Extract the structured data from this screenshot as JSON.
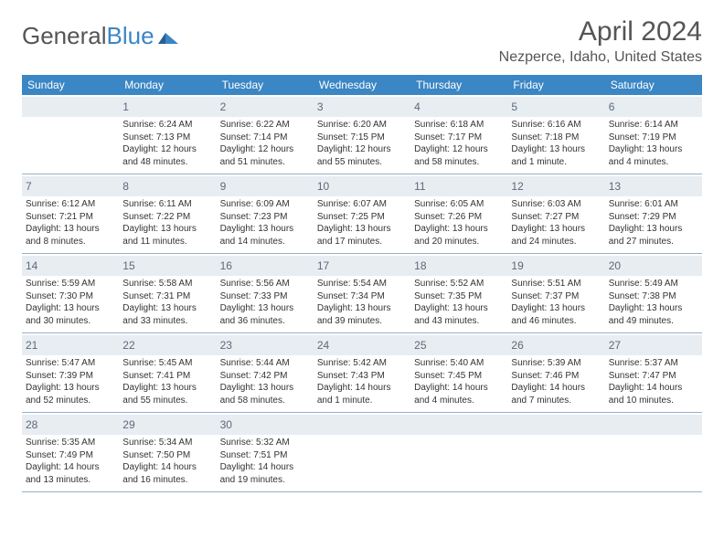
{
  "logo": {
    "text_general": "General",
    "text_blue": "Blue"
  },
  "title": "April 2024",
  "location": "Nezperce, Idaho, United States",
  "weekdays": [
    "Sunday",
    "Monday",
    "Tuesday",
    "Wednesday",
    "Thursday",
    "Friday",
    "Saturday"
  ],
  "colors": {
    "header_bg": "#3b86c4",
    "daynum_bg": "#e8edf2",
    "border": "#96b1c9",
    "text": "#333333",
    "title_text": "#555555"
  },
  "weeks": [
    [
      {
        "day": "",
        "sunrise": "",
        "sunset": "",
        "daylight": ""
      },
      {
        "day": "1",
        "sunrise": "Sunrise: 6:24 AM",
        "sunset": "Sunset: 7:13 PM",
        "daylight": "Daylight: 12 hours and 48 minutes."
      },
      {
        "day": "2",
        "sunrise": "Sunrise: 6:22 AM",
        "sunset": "Sunset: 7:14 PM",
        "daylight": "Daylight: 12 hours and 51 minutes."
      },
      {
        "day": "3",
        "sunrise": "Sunrise: 6:20 AM",
        "sunset": "Sunset: 7:15 PM",
        "daylight": "Daylight: 12 hours and 55 minutes."
      },
      {
        "day": "4",
        "sunrise": "Sunrise: 6:18 AM",
        "sunset": "Sunset: 7:17 PM",
        "daylight": "Daylight: 12 hours and 58 minutes."
      },
      {
        "day": "5",
        "sunrise": "Sunrise: 6:16 AM",
        "sunset": "Sunset: 7:18 PM",
        "daylight": "Daylight: 13 hours and 1 minute."
      },
      {
        "day": "6",
        "sunrise": "Sunrise: 6:14 AM",
        "sunset": "Sunset: 7:19 PM",
        "daylight": "Daylight: 13 hours and 4 minutes."
      }
    ],
    [
      {
        "day": "7",
        "sunrise": "Sunrise: 6:12 AM",
        "sunset": "Sunset: 7:21 PM",
        "daylight": "Daylight: 13 hours and 8 minutes."
      },
      {
        "day": "8",
        "sunrise": "Sunrise: 6:11 AM",
        "sunset": "Sunset: 7:22 PM",
        "daylight": "Daylight: 13 hours and 11 minutes."
      },
      {
        "day": "9",
        "sunrise": "Sunrise: 6:09 AM",
        "sunset": "Sunset: 7:23 PM",
        "daylight": "Daylight: 13 hours and 14 minutes."
      },
      {
        "day": "10",
        "sunrise": "Sunrise: 6:07 AM",
        "sunset": "Sunset: 7:25 PM",
        "daylight": "Daylight: 13 hours and 17 minutes."
      },
      {
        "day": "11",
        "sunrise": "Sunrise: 6:05 AM",
        "sunset": "Sunset: 7:26 PM",
        "daylight": "Daylight: 13 hours and 20 minutes."
      },
      {
        "day": "12",
        "sunrise": "Sunrise: 6:03 AM",
        "sunset": "Sunset: 7:27 PM",
        "daylight": "Daylight: 13 hours and 24 minutes."
      },
      {
        "day": "13",
        "sunrise": "Sunrise: 6:01 AM",
        "sunset": "Sunset: 7:29 PM",
        "daylight": "Daylight: 13 hours and 27 minutes."
      }
    ],
    [
      {
        "day": "14",
        "sunrise": "Sunrise: 5:59 AM",
        "sunset": "Sunset: 7:30 PM",
        "daylight": "Daylight: 13 hours and 30 minutes."
      },
      {
        "day": "15",
        "sunrise": "Sunrise: 5:58 AM",
        "sunset": "Sunset: 7:31 PM",
        "daylight": "Daylight: 13 hours and 33 minutes."
      },
      {
        "day": "16",
        "sunrise": "Sunrise: 5:56 AM",
        "sunset": "Sunset: 7:33 PM",
        "daylight": "Daylight: 13 hours and 36 minutes."
      },
      {
        "day": "17",
        "sunrise": "Sunrise: 5:54 AM",
        "sunset": "Sunset: 7:34 PM",
        "daylight": "Daylight: 13 hours and 39 minutes."
      },
      {
        "day": "18",
        "sunrise": "Sunrise: 5:52 AM",
        "sunset": "Sunset: 7:35 PM",
        "daylight": "Daylight: 13 hours and 43 minutes."
      },
      {
        "day": "19",
        "sunrise": "Sunrise: 5:51 AM",
        "sunset": "Sunset: 7:37 PM",
        "daylight": "Daylight: 13 hours and 46 minutes."
      },
      {
        "day": "20",
        "sunrise": "Sunrise: 5:49 AM",
        "sunset": "Sunset: 7:38 PM",
        "daylight": "Daylight: 13 hours and 49 minutes."
      }
    ],
    [
      {
        "day": "21",
        "sunrise": "Sunrise: 5:47 AM",
        "sunset": "Sunset: 7:39 PM",
        "daylight": "Daylight: 13 hours and 52 minutes."
      },
      {
        "day": "22",
        "sunrise": "Sunrise: 5:45 AM",
        "sunset": "Sunset: 7:41 PM",
        "daylight": "Daylight: 13 hours and 55 minutes."
      },
      {
        "day": "23",
        "sunrise": "Sunrise: 5:44 AM",
        "sunset": "Sunset: 7:42 PM",
        "daylight": "Daylight: 13 hours and 58 minutes."
      },
      {
        "day": "24",
        "sunrise": "Sunrise: 5:42 AM",
        "sunset": "Sunset: 7:43 PM",
        "daylight": "Daylight: 14 hours and 1 minute."
      },
      {
        "day": "25",
        "sunrise": "Sunrise: 5:40 AM",
        "sunset": "Sunset: 7:45 PM",
        "daylight": "Daylight: 14 hours and 4 minutes."
      },
      {
        "day": "26",
        "sunrise": "Sunrise: 5:39 AM",
        "sunset": "Sunset: 7:46 PM",
        "daylight": "Daylight: 14 hours and 7 minutes."
      },
      {
        "day": "27",
        "sunrise": "Sunrise: 5:37 AM",
        "sunset": "Sunset: 7:47 PM",
        "daylight": "Daylight: 14 hours and 10 minutes."
      }
    ],
    [
      {
        "day": "28",
        "sunrise": "Sunrise: 5:35 AM",
        "sunset": "Sunset: 7:49 PM",
        "daylight": "Daylight: 14 hours and 13 minutes."
      },
      {
        "day": "29",
        "sunrise": "Sunrise: 5:34 AM",
        "sunset": "Sunset: 7:50 PM",
        "daylight": "Daylight: 14 hours and 16 minutes."
      },
      {
        "day": "30",
        "sunrise": "Sunrise: 5:32 AM",
        "sunset": "Sunset: 7:51 PM",
        "daylight": "Daylight: 14 hours and 19 minutes."
      },
      {
        "day": "",
        "sunrise": "",
        "sunset": "",
        "daylight": ""
      },
      {
        "day": "",
        "sunrise": "",
        "sunset": "",
        "daylight": ""
      },
      {
        "day": "",
        "sunrise": "",
        "sunset": "",
        "daylight": ""
      },
      {
        "day": "",
        "sunrise": "",
        "sunset": "",
        "daylight": ""
      }
    ]
  ]
}
